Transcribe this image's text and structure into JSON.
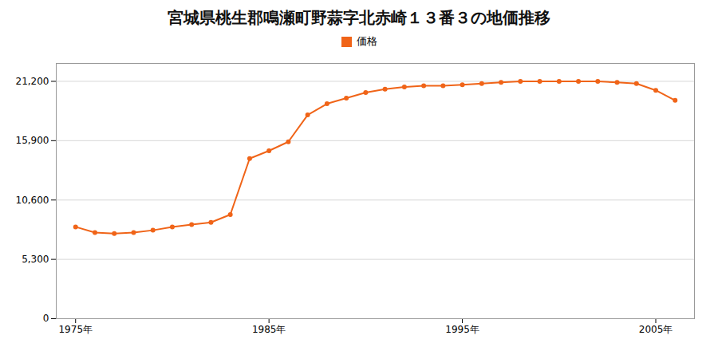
{
  "chart_data": {
    "type": "line",
    "title": "宮城県桃生郡鳴瀬町野蒜字北赤崎１３番３の地価推移",
    "x": [
      1975,
      1976,
      1977,
      1978,
      1979,
      1980,
      1981,
      1982,
      1983,
      1984,
      1985,
      1986,
      1987,
      1988,
      1989,
      1990,
      1991,
      1992,
      1993,
      1994,
      1995,
      1996,
      1997,
      1998,
      1999,
      2000,
      2001,
      2002,
      2003,
      2004,
      2005,
      2006
    ],
    "series": [
      {
        "name": "価格",
        "color": "#f06418",
        "marker": "circle",
        "values": [
          8200,
          7700,
          7600,
          7700,
          7900,
          8200,
          8400,
          8600,
          9300,
          14300,
          15000,
          15800,
          18200,
          19200,
          19700,
          20200,
          20500,
          20700,
          20800,
          20800,
          20900,
          21000,
          21100,
          21200,
          21200,
          21200,
          21200,
          21200,
          21100,
          21000,
          20400,
          19500
        ]
      }
    ],
    "xlim": [
      1974,
      2007
    ],
    "xticks": [
      {
        "value": 1975,
        "label": "1975年"
      },
      {
        "value": 1985,
        "label": "1985年"
      },
      {
        "value": 1995,
        "label": "1995年"
      },
      {
        "value": 2005,
        "label": "2005年"
      }
    ],
    "ylim": [
      0,
      22800
    ],
    "yticks": [
      0,
      {
        "value": 5300,
        "label": "5,300"
      },
      {
        "value": 10600,
        "label": "10,600"
      },
      {
        "value": 15900,
        "label": "15,900"
      },
      {
        "value": 21200,
        "label": "21,200"
      }
    ],
    "grid": true,
    "legend": "top"
  }
}
